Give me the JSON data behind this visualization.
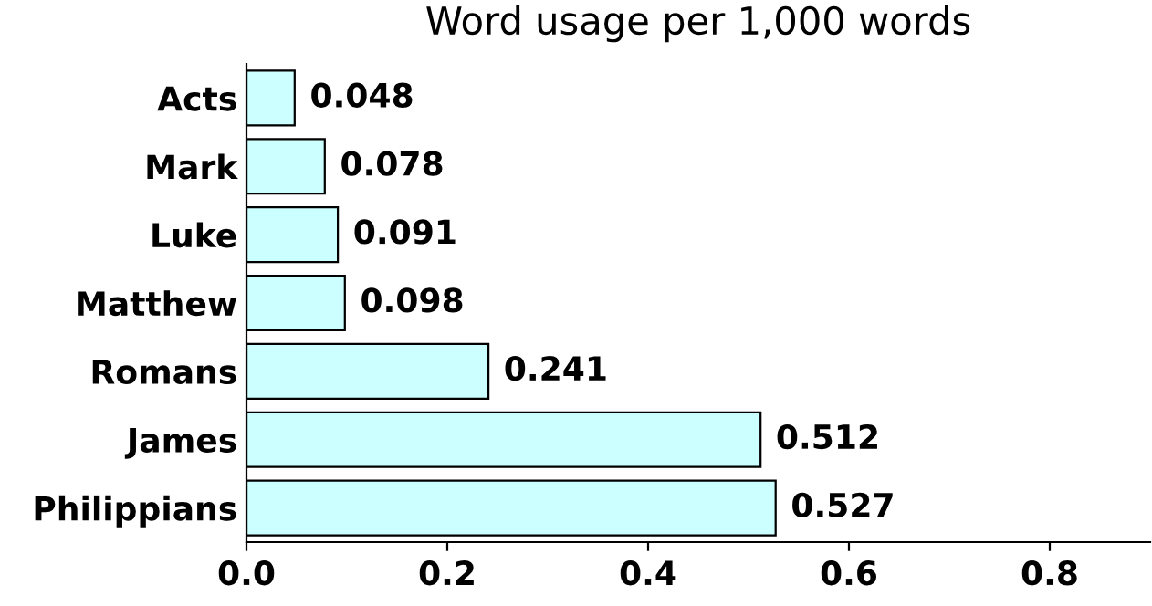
{
  "chart_data": {
    "type": "bar",
    "orientation": "horizontal",
    "title": "Word usage per 1,000 words",
    "categories": [
      "Acts",
      "Mark",
      "Luke",
      "Matthew",
      "Romans",
      "James",
      "Philippians"
    ],
    "values": [
      0.048,
      0.078,
      0.091,
      0.098,
      0.241,
      0.512,
      0.527
    ],
    "color": "#ccffff",
    "xlim": [
      0,
      0.9
    ],
    "xticks": [
      {
        "value": 0,
        "label": "0.0"
      },
      {
        "value": 0.2,
        "label": "0.2"
      },
      {
        "value": 0.4,
        "label": "0.4"
      },
      {
        "value": 0.6,
        "label": "0.6"
      },
      {
        "value": 0.8,
        "label": "0.8"
      }
    ],
    "data_labels": true,
    "grid": false,
    "legend": false
  }
}
